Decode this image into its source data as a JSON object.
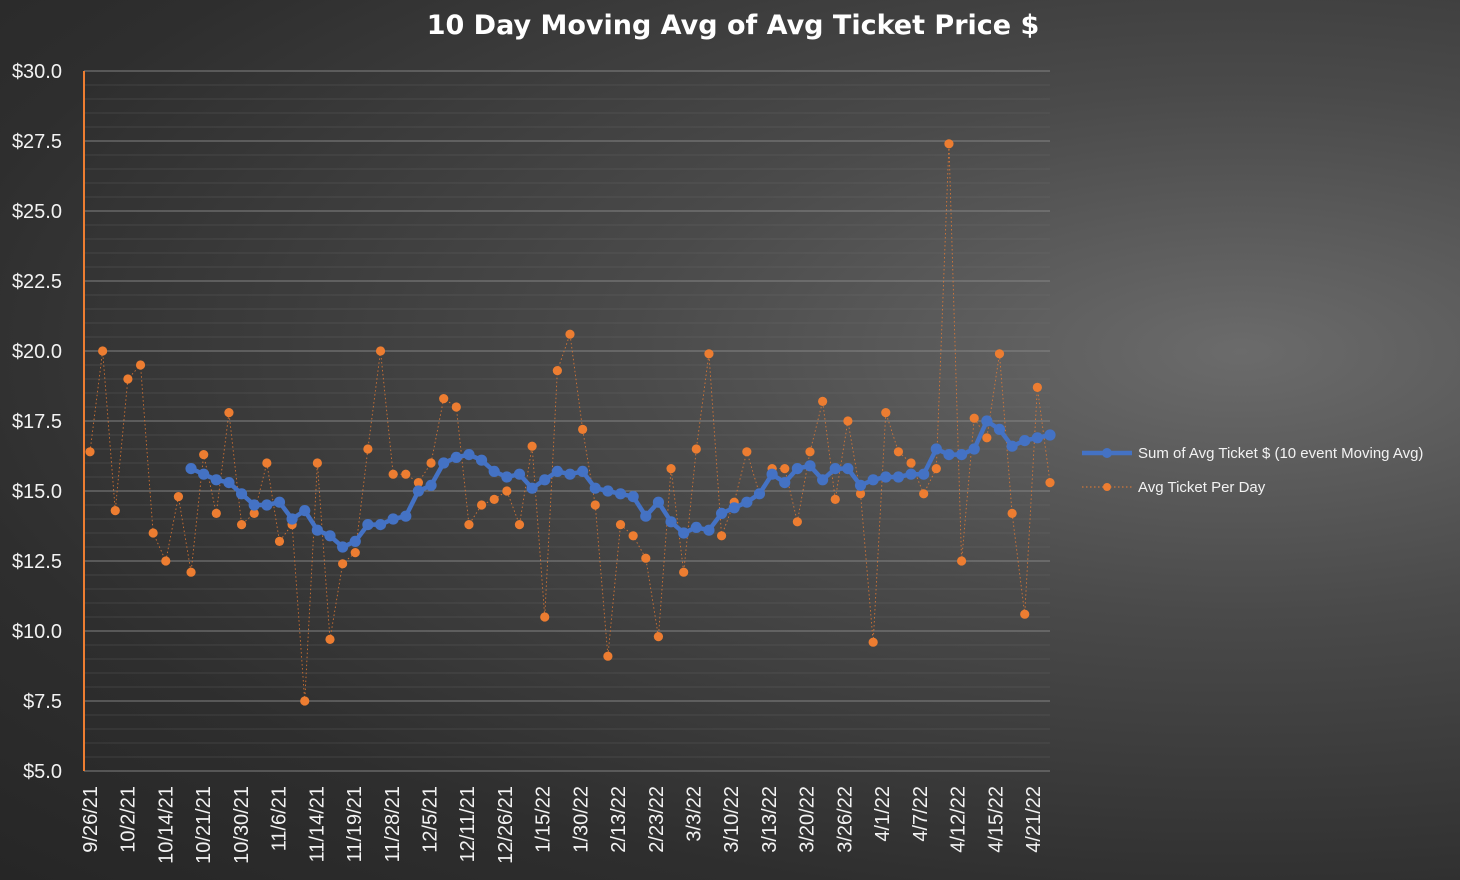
{
  "chart_data": {
    "type": "line",
    "title": "10 Day Moving Avg of Avg Ticket Price $",
    "xlabel": "",
    "ylabel": "",
    "ylim": [
      5,
      30
    ],
    "y_ticks": [
      "$5.0",
      "$7.5",
      "$10.0",
      "$12.5",
      "$15.0",
      "$17.5",
      "$20.0",
      "$22.5",
      "$25.0",
      "$27.5",
      "$30.0"
    ],
    "x_tick_labels": [
      "9/26/21",
      "10/2/21",
      "10/14/21",
      "10/21/21",
      "10/30/21",
      "11/6/21",
      "11/14/21",
      "11/19/21",
      "11/28/21",
      "12/5/21",
      "12/11/21",
      "12/26/21",
      "1/15/22",
      "1/30/22",
      "2/13/22",
      "2/23/22",
      "3/3/22",
      "3/10/22",
      "3/13/22",
      "3/20/22",
      "3/26/22",
      "4/1/22",
      "4/7/22",
      "4/12/22",
      "4/15/22",
      "4/21/22"
    ],
    "grid": true,
    "legend_position": "right",
    "colors": {
      "moving_avg": "#4472c4",
      "daily": "#ed7d31",
      "axis": "#ed7d31",
      "grid": "#767676"
    },
    "series": [
      {
        "name": "Sum of Avg Ticket $ (10 event Moving Avg)",
        "style": "line",
        "start_index": 8,
        "values": [
          15.8,
          15.6,
          15.4,
          15.3,
          14.9,
          14.5,
          14.5,
          14.6,
          14.0,
          14.3,
          13.6,
          13.4,
          13.0,
          13.2,
          13.8,
          13.8,
          14.0,
          14.1,
          15.0,
          15.2,
          16.0,
          16.2,
          16.3,
          16.1,
          15.7,
          15.5,
          15.6,
          15.1,
          15.4,
          15.7,
          15.6,
          15.7,
          15.1,
          15.0,
          14.9,
          14.8,
          14.1,
          14.6,
          13.9,
          13.5,
          13.7,
          13.6,
          14.2,
          14.4,
          14.6,
          14.9,
          15.6,
          15.3,
          15.8,
          15.9,
          15.4,
          15.8,
          15.8,
          15.2,
          15.4,
          15.5,
          15.5,
          15.6,
          15.6,
          16.5,
          16.3,
          16.3,
          16.5,
          17.5,
          17.2,
          16.6,
          16.8,
          16.9,
          17.0
        ]
      },
      {
        "name": "Avg Ticket Per Day",
        "style": "dotted-markers",
        "start_index": 0,
        "values": [
          16.4,
          20.0,
          14.3,
          19.0,
          19.5,
          13.5,
          12.5,
          14.8,
          12.1,
          16.3,
          14.2,
          17.8,
          13.8,
          14.2,
          16.0,
          13.2,
          13.8,
          7.5,
          16.0,
          9.7,
          12.4,
          12.8,
          16.5,
          20.0,
          15.6,
          15.6,
          15.3,
          16.0,
          18.3,
          18.0,
          13.8,
          14.5,
          14.7,
          15.0,
          13.8,
          16.6,
          10.5,
          19.3,
          20.6,
          17.2,
          14.5,
          9.1,
          13.8,
          13.4,
          12.6,
          9.8,
          15.8,
          12.1,
          16.5,
          19.9,
          13.4,
          14.6,
          16.4,
          14.9,
          15.8,
          15.8,
          13.9,
          16.4,
          18.2,
          14.7,
          17.5,
          14.9,
          9.6,
          17.8,
          16.4,
          16.0,
          14.9,
          15.8,
          27.4,
          12.5,
          17.6,
          16.9,
          19.9,
          14.2,
          10.6,
          18.7,
          15.3
        ]
      }
    ]
  }
}
